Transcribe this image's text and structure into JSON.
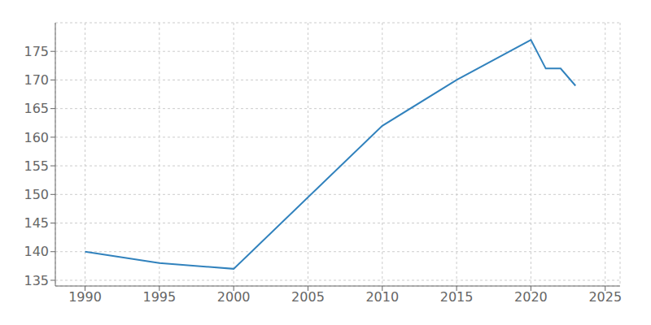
{
  "chart_data": {
    "type": "line",
    "x": [
      1990,
      1995,
      2000,
      2010,
      2015,
      2020,
      2021,
      2022,
      2023
    ],
    "values": [
      140,
      138,
      137,
      162,
      170,
      177,
      172,
      172,
      169
    ],
    "xlim": [
      1988,
      2026
    ],
    "ylim": [
      134,
      180
    ],
    "xticks": [
      1990,
      1995,
      2000,
      2005,
      2010,
      2015,
      2020,
      2025
    ],
    "yticks": [
      135,
      140,
      145,
      150,
      155,
      160,
      165,
      170,
      175
    ],
    "grid": true
  }
}
